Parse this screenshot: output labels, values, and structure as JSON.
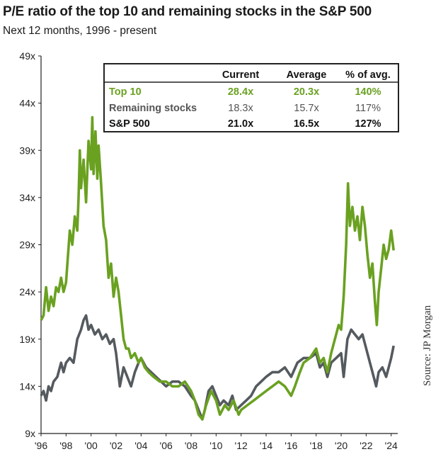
{
  "header": {
    "title": "P/E ratio of the top 10 and remaining stocks in the S&P 500",
    "subtitle": "Next 12 months, 1996 - present"
  },
  "source": "Source:  JP Morgan",
  "table": {
    "headers": [
      "Current",
      "Average",
      "% of avg."
    ],
    "rows": [
      {
        "label": "Top 10",
        "current": "28.4x",
        "average": "20.3x",
        "pct": "140%",
        "color": "#6aa121"
      },
      {
        "label": "Remaining stocks",
        "current": "18.3x",
        "average": "15.7x",
        "pct": "117%",
        "color": "#555555"
      },
      {
        "label": "S&P 500",
        "current": "21.0x",
        "average": "16.5x",
        "pct": "127%",
        "color": "#111111"
      }
    ]
  },
  "chart_data": {
    "type": "line",
    "xlabel": "",
    "ylabel": "",
    "xlim": [
      1996,
      2024.3
    ],
    "ylim": [
      9,
      49
    ],
    "grid": false,
    "x_ticks": [
      1996,
      1998,
      2000,
      2002,
      2004,
      2006,
      2008,
      2010,
      2012,
      2014,
      2016,
      2018,
      2020,
      2022,
      2024
    ],
    "x_tick_labels": [
      "'96",
      "'98",
      "'00",
      "'02",
      "'04",
      "'06",
      "'08",
      "'10",
      "'12",
      "'14",
      "'16",
      "'18",
      "'20",
      "'22",
      "'24"
    ],
    "y_ticks": [
      9,
      14,
      19,
      24,
      29,
      34,
      39,
      44,
      49
    ],
    "y_tick_labels": [
      "9x",
      "14x",
      "19x",
      "24x",
      "29x",
      "34x",
      "39x",
      "44x",
      "49x"
    ],
    "series": [
      {
        "name": "Top 10",
        "color": "#6aa121",
        "points": [
          [
            1996.0,
            21.0
          ],
          [
            1996.2,
            21.5
          ],
          [
            1996.4,
            24.5
          ],
          [
            1996.6,
            22.0
          ],
          [
            1996.8,
            23.5
          ],
          [
            1997.0,
            22.5
          ],
          [
            1997.2,
            24.5
          ],
          [
            1997.4,
            24.0
          ],
          [
            1997.6,
            25.5
          ],
          [
            1997.8,
            24.0
          ],
          [
            1998.0,
            25.0
          ],
          [
            1998.3,
            30.5
          ],
          [
            1998.5,
            29.0
          ],
          [
            1998.7,
            32.0
          ],
          [
            1998.9,
            30.5
          ],
          [
            1999.0,
            34.0
          ],
          [
            1999.1,
            39.0
          ],
          [
            1999.2,
            35.0
          ],
          [
            1999.4,
            38.0
          ],
          [
            1999.6,
            33.5
          ],
          [
            1999.8,
            40.0
          ],
          [
            2000.0,
            37.0
          ],
          [
            2000.1,
            42.5
          ],
          [
            2000.2,
            36.5
          ],
          [
            2000.35,
            41.0
          ],
          [
            2000.5,
            36.0
          ],
          [
            2000.6,
            39.5
          ],
          [
            2000.8,
            35.5
          ],
          [
            2001.0,
            31.0
          ],
          [
            2001.2,
            29.5
          ],
          [
            2001.4,
            25.5
          ],
          [
            2001.6,
            27.0
          ],
          [
            2001.8,
            23.5
          ],
          [
            2002.0,
            25.5
          ],
          [
            2002.2,
            24.0
          ],
          [
            2002.4,
            21.5
          ],
          [
            2002.6,
            19.0
          ],
          [
            2002.8,
            18.0
          ],
          [
            2003.0,
            18.0
          ],
          [
            2003.2,
            17.0
          ],
          [
            2003.5,
            17.5
          ],
          [
            2003.8,
            16.5
          ],
          [
            2004.0,
            17.0
          ],
          [
            2004.3,
            16.0
          ],
          [
            2004.6,
            15.5
          ],
          [
            2005.0,
            15.0
          ],
          [
            2005.5,
            14.5
          ],
          [
            2006.0,
            14.5
          ],
          [
            2006.5,
            14.0
          ],
          [
            2007.0,
            14.0
          ],
          [
            2007.5,
            14.5
          ],
          [
            2008.0,
            13.5
          ],
          [
            2008.3,
            12.5
          ],
          [
            2008.6,
            11.0
          ],
          [
            2008.9,
            10.5
          ],
          [
            2009.2,
            12.0
          ],
          [
            2009.6,
            13.5
          ],
          [
            2010.0,
            12.5
          ],
          [
            2010.3,
            11.0
          ],
          [
            2010.7,
            12.0
          ],
          [
            2011.0,
            11.5
          ],
          [
            2011.4,
            12.5
          ],
          [
            2011.8,
            11.0
          ],
          [
            2012.0,
            11.5
          ],
          [
            2012.5,
            12.0
          ],
          [
            2013.0,
            12.5
          ],
          [
            2013.5,
            13.0
          ],
          [
            2014.0,
            13.5
          ],
          [
            2014.5,
            14.0
          ],
          [
            2015.0,
            14.5
          ],
          [
            2015.5,
            14.0
          ],
          [
            2016.0,
            13.0
          ],
          [
            2016.3,
            14.0
          ],
          [
            2016.7,
            15.5
          ],
          [
            2017.0,
            16.5
          ],
          [
            2017.5,
            17.0
          ],
          [
            2018.0,
            18.0
          ],
          [
            2018.3,
            16.5
          ],
          [
            2018.6,
            17.0
          ],
          [
            2018.9,
            15.5
          ],
          [
            2019.2,
            17.5
          ],
          [
            2019.5,
            19.0
          ],
          [
            2019.8,
            20.5
          ],
          [
            2020.0,
            20.0
          ],
          [
            2020.2,
            23.5
          ],
          [
            2020.4,
            29.0
          ],
          [
            2020.55,
            35.5
          ],
          [
            2020.7,
            31.0
          ],
          [
            2020.9,
            33.0
          ],
          [
            2021.1,
            30.5
          ],
          [
            2021.3,
            32.0
          ],
          [
            2021.5,
            29.5
          ],
          [
            2021.7,
            33.0
          ],
          [
            2021.9,
            31.0
          ],
          [
            2022.1,
            28.0
          ],
          [
            2022.3,
            25.5
          ],
          [
            2022.5,
            27.0
          ],
          [
            2022.7,
            23.0
          ],
          [
            2022.85,
            20.5
          ],
          [
            2023.0,
            24.0
          ],
          [
            2023.2,
            26.5
          ],
          [
            2023.4,
            29.0
          ],
          [
            2023.6,
            27.5
          ],
          [
            2023.8,
            28.5
          ],
          [
            2024.0,
            30.5
          ],
          [
            2024.2,
            28.4
          ]
        ]
      },
      {
        "name": "Remaining stocks",
        "color": "#555a5f",
        "points": [
          [
            1996.0,
            13.0
          ],
          [
            1996.2,
            13.5
          ],
          [
            1996.4,
            12.5
          ],
          [
            1996.6,
            14.0
          ],
          [
            1996.8,
            13.5
          ],
          [
            1997.0,
            14.5
          ],
          [
            1997.3,
            15.0
          ],
          [
            1997.6,
            16.5
          ],
          [
            1997.8,
            15.5
          ],
          [
            1998.0,
            16.5
          ],
          [
            1998.3,
            17.0
          ],
          [
            1998.6,
            16.5
          ],
          [
            1998.9,
            19.0
          ],
          [
            1999.2,
            20.0
          ],
          [
            1999.4,
            21.0
          ],
          [
            1999.6,
            21.5
          ],
          [
            1999.8,
            20.0
          ],
          [
            2000.0,
            20.5
          ],
          [
            2000.3,
            19.5
          ],
          [
            2000.6,
            20.0
          ],
          [
            2000.9,
            19.0
          ],
          [
            2001.2,
            19.5
          ],
          [
            2001.5,
            18.5
          ],
          [
            2001.8,
            19.0
          ],
          [
            2002.0,
            17.5
          ],
          [
            2002.3,
            14.0
          ],
          [
            2002.6,
            16.0
          ],
          [
            2002.9,
            15.0
          ],
          [
            2003.2,
            14.0
          ],
          [
            2003.5,
            15.5
          ],
          [
            2003.8,
            16.5
          ],
          [
            2004.0,
            17.0
          ],
          [
            2004.4,
            16.0
          ],
          [
            2004.8,
            15.5
          ],
          [
            2005.2,
            15.0
          ],
          [
            2005.6,
            14.5
          ],
          [
            2006.0,
            14.0
          ],
          [
            2006.5,
            14.5
          ],
          [
            2007.0,
            14.5
          ],
          [
            2007.5,
            14.0
          ],
          [
            2008.0,
            13.0
          ],
          [
            2008.3,
            12.5
          ],
          [
            2008.6,
            11.5
          ],
          [
            2008.9,
            10.5
          ],
          [
            2009.1,
            11.5
          ],
          [
            2009.4,
            13.5
          ],
          [
            2009.7,
            14.0
          ],
          [
            2010.0,
            13.0
          ],
          [
            2010.3,
            12.0
          ],
          [
            2010.6,
            12.5
          ],
          [
            2011.0,
            12.0
          ],
          [
            2011.3,
            13.0
          ],
          [
            2011.6,
            11.5
          ],
          [
            2012.0,
            12.0
          ],
          [
            2012.4,
            12.5
          ],
          [
            2012.8,
            13.0
          ],
          [
            2013.2,
            14.0
          ],
          [
            2013.6,
            14.5
          ],
          [
            2014.0,
            15.0
          ],
          [
            2014.5,
            15.5
          ],
          [
            2015.0,
            15.5
          ],
          [
            2015.5,
            16.0
          ],
          [
            2016.0,
            15.0
          ],
          [
            2016.5,
            16.5
          ],
          [
            2017.0,
            17.0
          ],
          [
            2017.5,
            17.0
          ],
          [
            2018.0,
            17.5
          ],
          [
            2018.3,
            16.0
          ],
          [
            2018.6,
            16.5
          ],
          [
            2018.9,
            15.0
          ],
          [
            2019.2,
            16.5
          ],
          [
            2019.6,
            17.0
          ],
          [
            2020.0,
            17.5
          ],
          [
            2020.2,
            15.0
          ],
          [
            2020.5,
            19.0
          ],
          [
            2020.8,
            20.0
          ],
          [
            2021.1,
            19.5
          ],
          [
            2021.4,
            19.0
          ],
          [
            2021.7,
            19.5
          ],
          [
            2022.0,
            18.0
          ],
          [
            2022.3,
            16.5
          ],
          [
            2022.6,
            15.0
          ],
          [
            2022.8,
            14.0
          ],
          [
            2023.0,
            15.5
          ],
          [
            2023.3,
            16.0
          ],
          [
            2023.6,
            15.0
          ],
          [
            2023.8,
            16.0
          ],
          [
            2024.0,
            17.0
          ],
          [
            2024.2,
            18.3
          ]
        ]
      }
    ]
  }
}
